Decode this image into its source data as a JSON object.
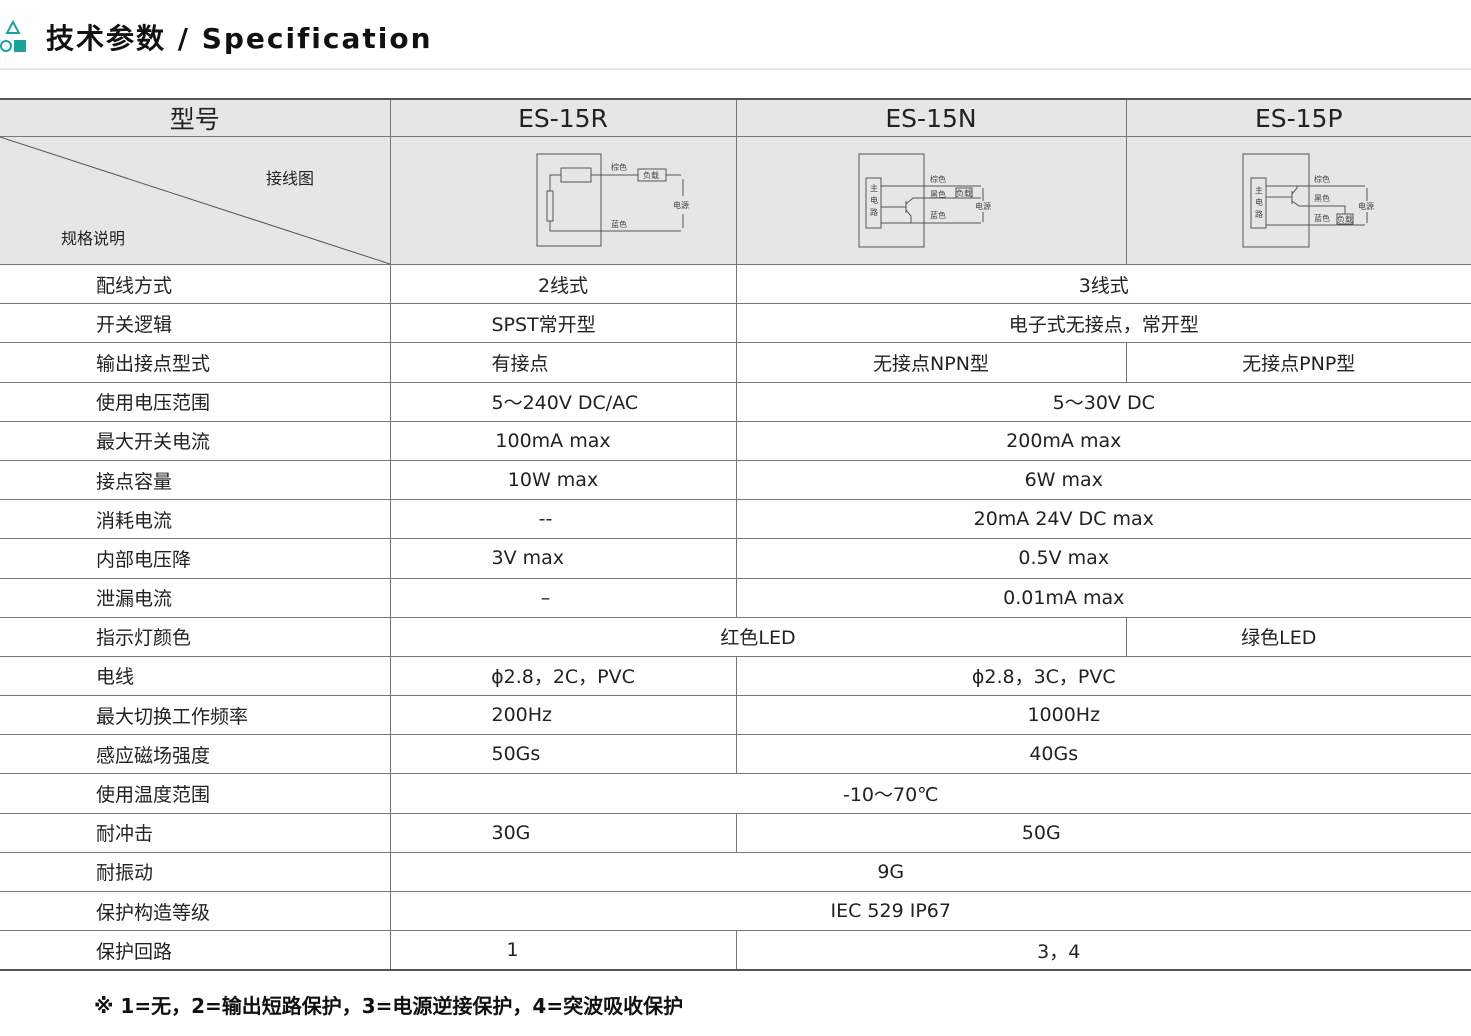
{
  "header": {
    "title": "技术参数 / Specification",
    "icon": "shapes-icon",
    "accent": "#1aa39a"
  },
  "table": {
    "model_label": "型号",
    "wiring_label": "接线图",
    "spec_label": "规格说明",
    "models": [
      "ES-15R",
      "ES-15N",
      "ES-15P"
    ],
    "diagram": {
      "brown": "棕色",
      "black": "黑色",
      "blue": "蓝色",
      "load": "负载",
      "power": "电源",
      "main_circuit": [
        "主",
        "电",
        "路"
      ]
    },
    "rows": [
      {
        "label": "配线方式",
        "values": [
          "2线式",
          "3线式"
        ]
      },
      {
        "label": "开关逻辑",
        "values": [
          "SPST常开型",
          "电子式无接点，常开型"
        ]
      },
      {
        "label": "输出接点型式",
        "values": [
          "有接点",
          "无接点NPN型",
          "无接点PNP型"
        ]
      },
      {
        "label": "使用电压范围",
        "values": [
          "5～240V DC/AC",
          "5～30V DC"
        ]
      },
      {
        "label": "最大开关电流",
        "values": [
          "100mA max",
          "200mA max"
        ]
      },
      {
        "label": "接点容量",
        "values": [
          "10W max",
          "6W max"
        ]
      },
      {
        "label": "消耗电流",
        "values": [
          "--",
          "20mA 24V DC max"
        ]
      },
      {
        "label": "内部电压降",
        "values": [
          "3V max",
          "0.5V max"
        ]
      },
      {
        "label": "泄漏电流",
        "values": [
          "–",
          "0.01mA max"
        ]
      },
      {
        "label": "指示灯颜色",
        "values": [
          "红色LED",
          "绿色LED"
        ]
      },
      {
        "label": "电线",
        "values": [
          "ϕ2.8，2C，PVC",
          "ϕ2.8，3C，PVC"
        ]
      },
      {
        "label": "最大切换工作频率",
        "values": [
          "200Hz",
          "1000Hz"
        ]
      },
      {
        "label": "感应磁场强度",
        "values": [
          "50Gs",
          "40Gs"
        ]
      },
      {
        "label": "使用温度范围",
        "values": [
          "-10～70℃"
        ]
      },
      {
        "label": "耐冲击",
        "values": [
          "30G",
          "50G"
        ]
      },
      {
        "label": "耐振动",
        "values": [
          "9G"
        ]
      },
      {
        "label": "保护构造等级",
        "values": [
          "IEC 529 IP67"
        ]
      },
      {
        "label": "保护回路",
        "values": [
          "1",
          "3，4"
        ]
      }
    ]
  },
  "footnote": "※ 1=无，2=输出短路保护，3=电源逆接保护，4=突波吸收保护"
}
